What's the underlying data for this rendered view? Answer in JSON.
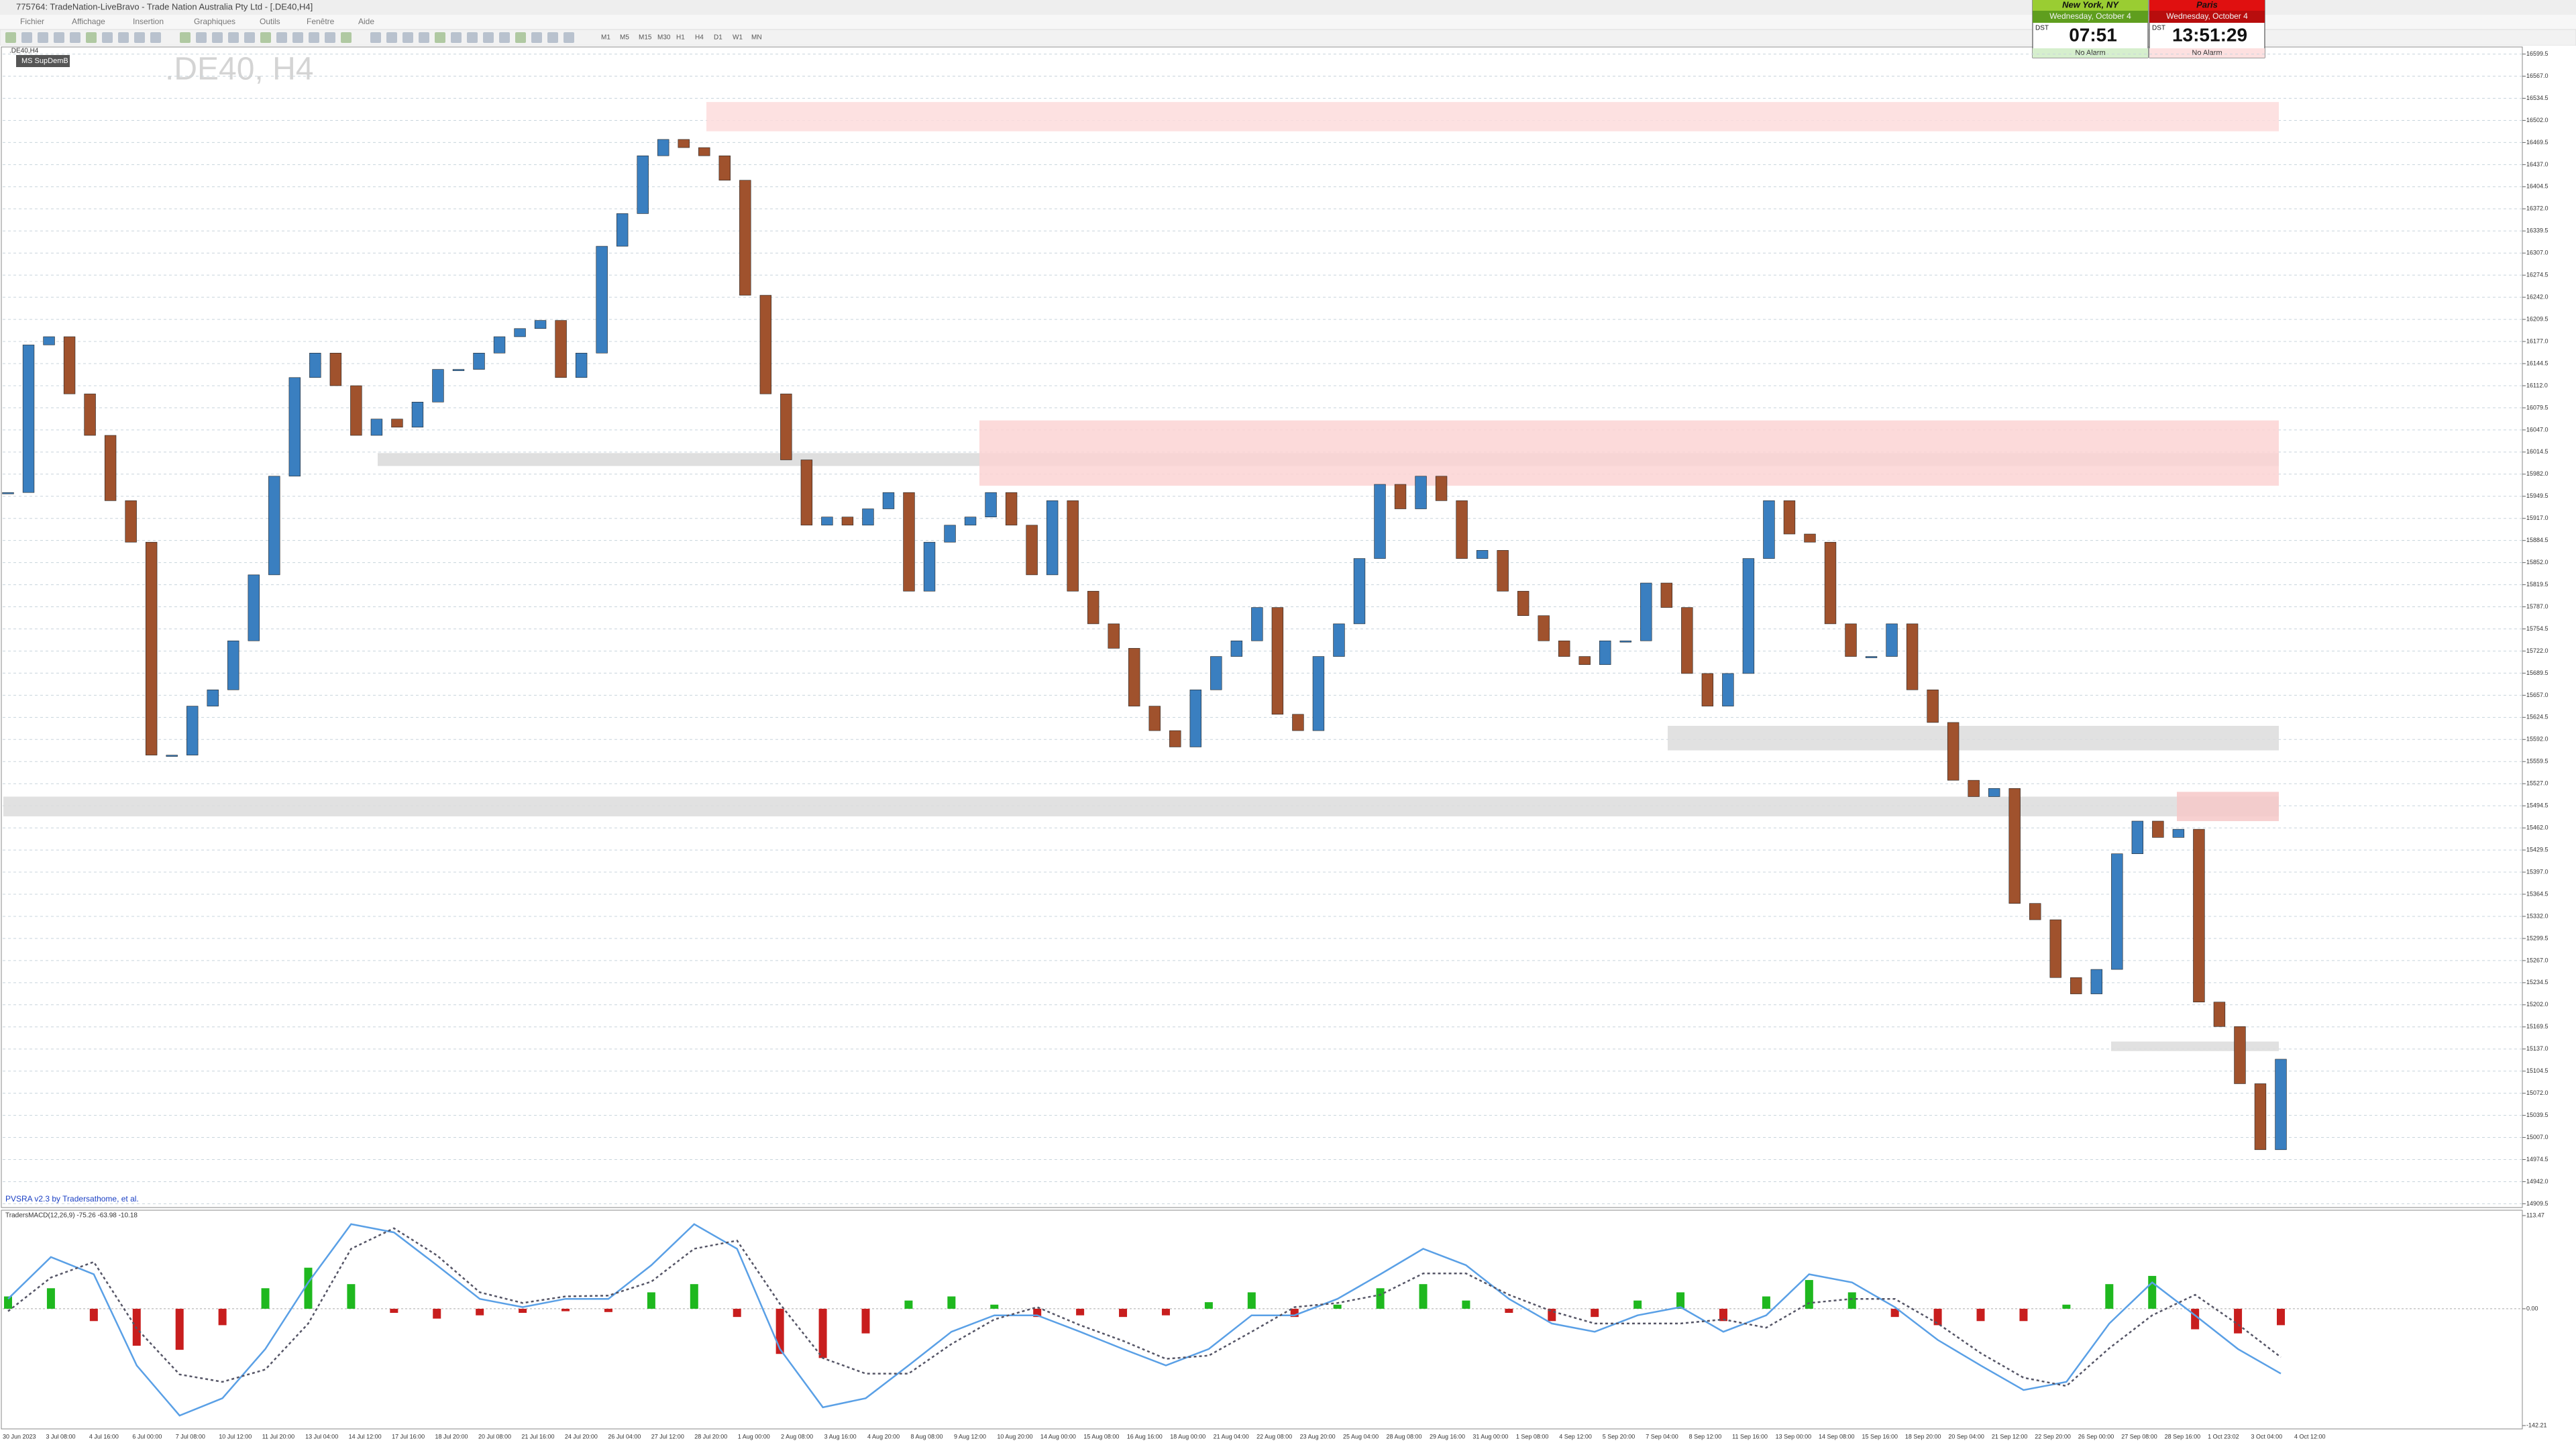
{
  "window": {
    "title": "775764: TradeNation-LiveBravo - Trade Nation Australia Pty Ltd - [.DE40,H4]"
  },
  "menu": [
    "Fichier",
    "Affichage",
    "Insertion",
    "Graphiques",
    "Outils",
    "Fenêtre",
    "Aide"
  ],
  "timeframes": [
    "M1",
    "M5",
    "M15",
    "M30",
    "H1",
    "H4",
    "D1",
    "W1",
    "MN"
  ],
  "clocks": [
    {
      "city": "New York, NY",
      "date": "Wednesday, October 4",
      "dst": "DST",
      "time": "07:51",
      "alarm": "No Alarm"
    },
    {
      "city": "Paris",
      "date": "Wednesday, October 4",
      "dst": "DST",
      "time": "13:51:29",
      "alarm": "No Alarm"
    }
  ],
  "chart_tab": ".DE40,H4",
  "chart_data": [
    {
      "type": "candlestick",
      "title": ".DE40, H4",
      "label": "MS SupDemB",
      "indicator_label": "PVSRA v2.3 by Tradersathome, et al.",
      "up_color": "#3a7fc0",
      "down_color": "#a0522d",
      "values": [
        15955,
        16172,
        16184,
        16100,
        16039,
        15943,
        15882,
        15569,
        15569,
        15641,
        15665,
        15737,
        15834,
        15979,
        16124,
        16160,
        16112,
        16039,
        16063,
        16051,
        16088,
        16136,
        16136,
        16160,
        16184,
        16196,
        16208,
        16124,
        16160,
        16317,
        16365,
        16450,
        16474,
        16462,
        16450,
        16414,
        16245,
        16100,
        16003,
        15907,
        15919,
        15907,
        15931,
        15955,
        15810,
        15882,
        15907,
        15919,
        15955,
        15907,
        15834,
        15943,
        15810,
        15762,
        15726,
        15641,
        15605,
        15581,
        15665,
        15714,
        15737,
        15786,
        15629,
        15605,
        15714,
        15762,
        15858,
        15967,
        15931,
        15979,
        15943,
        15858,
        15870,
        15810,
        15774,
        15737,
        15714,
        15702,
        15737,
        15737,
        15822,
        15786,
        15689,
        15641,
        15689,
        15858,
        15943,
        15894,
        15882,
        15762,
        15714,
        15714,
        15762,
        15665,
        15617,
        15532,
        15508,
        15520,
        15351,
        15327,
        15242,
        15218,
        15254,
        15424,
        15472,
        15448,
        15460,
        15206,
        15170,
        15086,
        14989,
        15122
      ],
      "zones": [
        {
          "top": 16529,
          "bottom": 16486,
          "color": "#fddcdc"
        },
        {
          "top": 16013,
          "bottom": 15994,
          "color": "#d9d9d9"
        },
        {
          "top": 16061,
          "bottom": 15965,
          "color": "#fbd3d3"
        },
        {
          "top": 15612,
          "bottom": 15576,
          "color": "#dcdcdc"
        },
        {
          "top": 15508,
          "bottom": 15479,
          "color": "#dcdcdc"
        },
        {
          "top": 15515,
          "bottom": 15472,
          "color": "#f6c8c8"
        },
        {
          "top": 15148,
          "bottom": 15134,
          "color": "#dcdcdc"
        }
      ],
      "ylim": [
        14904,
        16606
      ],
      "grid": true,
      "yticks": [
        16599.5,
        {
          "value": 16567,
          "label": "16567.0"
        },
        16534.5,
        {
          "value": 16502,
          "label": "16502.0"
        },
        16469.5,
        {
          "value": 16437,
          "label": "16437.0"
        },
        16404.5,
        {
          "value": 16372,
          "label": "16372.0"
        },
        16339.5,
        {
          "value": 16307,
          "label": "16307.0"
        },
        16274.5,
        {
          "value": 16242,
          "label": "16242.0"
        },
        16209.5,
        {
          "value": 16177,
          "label": "16177.0"
        },
        16144.5,
        {
          "value": 16112,
          "label": "16112.0"
        },
        16079.5,
        {
          "value": 16047,
          "label": "16047.0"
        },
        16014.5,
        {
          "value": 15982,
          "label": "15982.0"
        },
        15949.5,
        {
          "value": 15917,
          "label": "15917.0"
        },
        15884.5,
        {
          "value": 15852,
          "label": "15852.0"
        },
        15819.5,
        {
          "value": 15787,
          "label": "15787.0"
        },
        15754.5,
        {
          "value": 15722,
          "label": "15722.0"
        },
        15689.5,
        {
          "value": 15657,
          "label": "15657.0"
        },
        15624.5,
        {
          "value": 15592,
          "label": "15592.0"
        },
        15559.5,
        {
          "value": 15527,
          "label": "15527.0"
        },
        15494.5,
        {
          "value": 15462,
          "label": "15462.0"
        },
        15429.5,
        {
          "value": 15397,
          "label": "15397.0"
        },
        15364.5,
        {
          "value": 15332,
          "label": "15332.0"
        },
        15299.5,
        {
          "value": 15267,
          "label": "15267.0"
        },
        15234.5,
        {
          "value": 15202,
          "label": "15202.0"
        },
        15169.5,
        {
          "value": 15137,
          "label": "15137.0"
        },
        15104.5,
        {
          "value": 15072,
          "label": "15072.0"
        },
        15039.5,
        {
          "value": 15007,
          "label": "15007.0"
        },
        14974.5,
        {
          "value": 14942,
          "label": "14942.0"
        },
        14909.5
      ],
      "xtick_labels": [
        "30 Jun 2023",
        "3 Jul 08:00",
        "4 Jul 16:00",
        "6 Jul 00:00",
        "7 Jul 08:00",
        "10 Jul 12:00",
        "11 Jul 20:00",
        "13 Jul 04:00",
        "14 Jul 12:00",
        "17 Jul 16:00",
        "18 Jul 20:00",
        "20 Jul 08:00",
        "21 Jul 16:00",
        "24 Jul 20:00",
        "26 Jul 04:00",
        "27 Jul 12:00",
        "28 Jul 20:00",
        "1 Aug 00:00",
        "2 Aug 08:00",
        "3 Aug 16:00",
        "4 Aug 20:00",
        "8 Aug 08:00",
        "9 Aug 12:00",
        "10 Aug 20:00",
        "14 Aug 00:00",
        "15 Aug 08:00",
        "16 Aug 16:00",
        "18 Aug 00:00",
        "21 Aug 04:00",
        "22 Aug 08:00",
        "23 Aug 20:00",
        "25 Aug 04:00",
        "28 Aug 08:00",
        "29 Aug 16:00",
        "31 Aug 00:00",
        "1 Sep 08:00",
        "4 Sep 12:00",
        "5 Sep 20:00",
        "7 Sep 04:00",
        "8 Sep 12:00",
        "11 Sep 16:00",
        "13 Sep 00:00",
        "14 Sep 08:00",
        "15 Sep 16:00",
        "18 Sep 20:00",
        "20 Sep 04:00",
        "21 Sep 12:00",
        "22 Sep 20:00",
        "26 Sep 00:00",
        "27 Sep 08:00",
        "28 Sep 16:00",
        "1 Oct 23:02",
        "3 Oct 04:00",
        "4 Oct 12:00"
      ]
    },
    {
      "type": "macd",
      "title": "TradersMACD(12,26,9) -75.26 -63.98 -10.18",
      "pos_color": "#1fb81f",
      "neg_color": "#c81e1e",
      "macd_color": "#5aa0e6",
      "signal_color": "#555566",
      "histogram": [
        15,
        25,
        -15,
        -45,
        -50,
        -20,
        25,
        50,
        30,
        -5,
        -12,
        -8,
        -5,
        -3,
        -4,
        20,
        30,
        -10,
        -55,
        -60,
        -30,
        10,
        15,
        5,
        -10,
        -8,
        -10,
        -8,
        8,
        20,
        -10,
        5,
        25,
        30,
        10,
        -5,
        -15,
        -10,
        10,
        20,
        -15,
        15,
        35,
        20,
        -10,
        -20,
        -15,
        -15,
        5,
        30,
        40,
        -25,
        -30,
        -20
      ],
      "macd": [
        12,
        63,
        42,
        -69,
        -130,
        -109,
        -49,
        32,
        103,
        93,
        53,
        12,
        2,
        12,
        12,
        53,
        103,
        73,
        -49,
        -120,
        -109,
        -69,
        -28,
        -8,
        -8,
        -28,
        -49,
        -69,
        -49,
        -8,
        -8,
        12,
        42,
        73,
        53,
        12,
        -18,
        -28,
        -8,
        2,
        -28,
        -8,
        42,
        32,
        2,
        -38,
        -69,
        -99,
        -89,
        -18,
        32,
        -8,
        -49,
        -79
      ],
      "signal": [
        -3,
        38,
        57,
        -24,
        -80,
        -89,
        -74,
        -18,
        73,
        98,
        65,
        20,
        7,
        15,
        16,
        33,
        73,
        83,
        6,
        -60,
        -79,
        -79,
        -43,
        -13,
        2,
        -20,
        -39,
        -61,
        -57,
        -28,
        2,
        7,
        17,
        43,
        43,
        17,
        -3,
        -18,
        -18,
        -18,
        -13,
        -23,
        7,
        12,
        12,
        -18,
        -54,
        -84,
        -94,
        -48,
        -8,
        17,
        -19,
        -59
      ],
      "ylim": [
        -142.21,
        113.47
      ],
      "yticks": [
        113.47,
        {
          "value": 0,
          "label": "0.00"
        },
        -142.21
      ]
    }
  ]
}
